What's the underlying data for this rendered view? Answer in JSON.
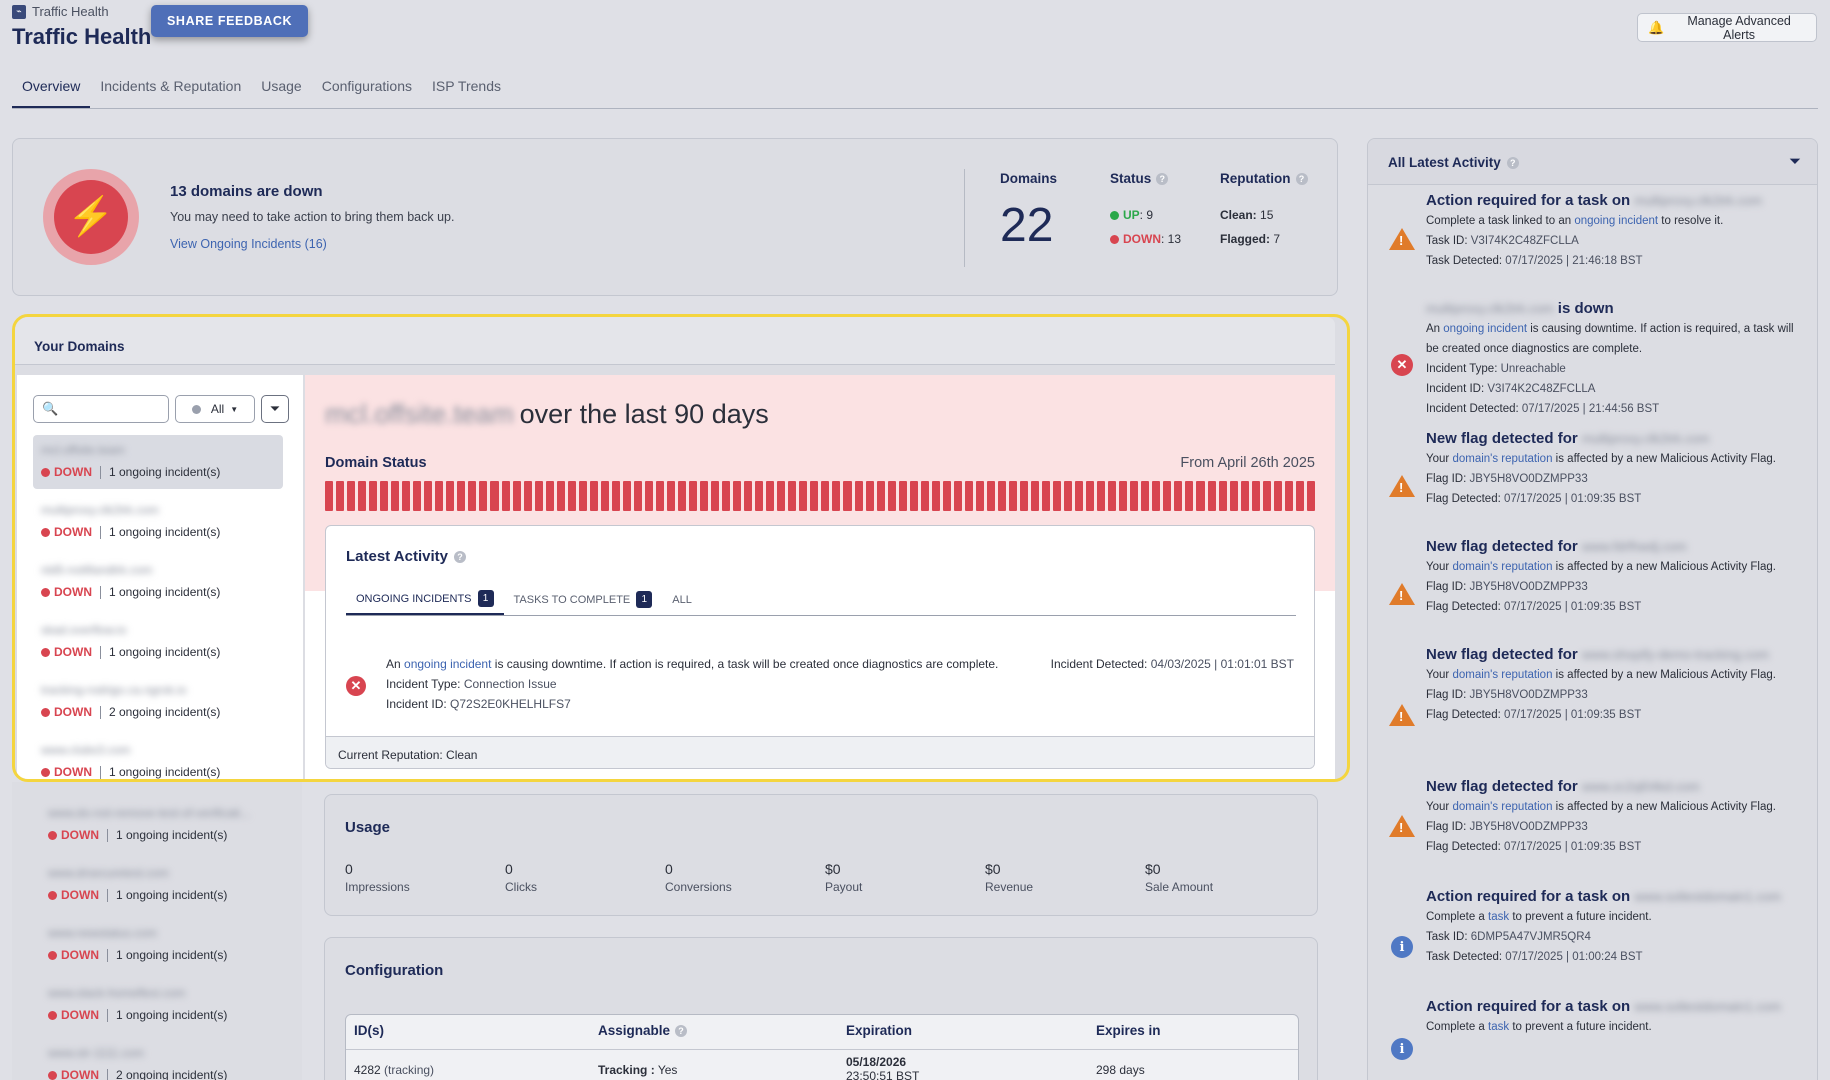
{
  "header": {
    "breadcrumb": "Traffic Health",
    "title": "Traffic Health",
    "feedback_label": "SHARE FEEDBACK",
    "alerts_label": "Manage Advanced Alerts"
  },
  "tabs": [
    {
      "label": "Overview",
      "active": true
    },
    {
      "label": "Incidents & Reputation"
    },
    {
      "label": "Usage"
    },
    {
      "label": "Configurations"
    },
    {
      "label": "ISP Trends"
    }
  ],
  "summary": {
    "title": "13 domains are down",
    "subtitle": "You may need to take action to bring them back up.",
    "link": "View Ongoing Incidents (16)",
    "domains_label": "Domains",
    "domains_count": "22",
    "status_label": "Status",
    "up_label": "UP",
    "up_count": ": 9",
    "down_label": "DOWN",
    "down_count": ": 13",
    "reputation_label": "Reputation",
    "clean_label": "Clean:",
    "clean_count": "15",
    "flagged_label": "Flagged:",
    "flagged_count": "7"
  },
  "domains": {
    "title": "Your Domains",
    "filter_value": "All",
    "list": [
      {
        "name": "mcl.offsite.team",
        "status": "DOWN",
        "incidents": "1 ongoing incident(s)"
      },
      {
        "name": "multiproxy.clk2trk.com",
        "status": "DOWN",
        "incidents": "1 ongoing incident(s)"
      },
      {
        "name": "nld5-notifiandtrk.com",
        "status": "DOWN",
        "incidents": "1 ongoing incident(s)"
      },
      {
        "name": "skad.overflow.io",
        "status": "DOWN",
        "incidents": "1 ongoing incident(s)"
      },
      {
        "name": "tracking-rodrigo.ca.ngrok.io",
        "status": "DOWN",
        "incidents": "2 ongoing incident(s)"
      },
      {
        "name": "www.clubs3.com",
        "status": "DOWN",
        "incidents": "1 ongoing incident(s)"
      },
      {
        "name": "www.do-not-remove-test-of-verificati...",
        "status": "DOWN",
        "incidents": "1 ongoing incident(s)"
      },
      {
        "name": "www.drsecuretest.com",
        "status": "DOWN",
        "incidents": "1 ongoing incident(s)"
      },
      {
        "name": "www.newstatus.com",
        "status": "DOWN",
        "incidents": "1 ongoing incident(s)"
      },
      {
        "name": "www.slack-homeflexi.com",
        "status": "DOWN",
        "incidents": "1 ongoing incident(s)"
      },
      {
        "name": "www.str-1111.com",
        "status": "DOWN",
        "incidents": "2 ongoing incident(s)"
      }
    ],
    "detail": {
      "domain": "mcl.offsite.team",
      "title_suffix": "over the last 90 days",
      "status_label": "Domain Status",
      "from_label": "From April 26th 2025",
      "days_down": 90
    },
    "latest_activity": {
      "title": "Latest Activity",
      "tabs": [
        {
          "label": "ONGOING INCIDENTS",
          "count": "1"
        },
        {
          "label": "TASKS TO COMPLETE",
          "count": "1"
        },
        {
          "label": "ALL"
        }
      ],
      "incident": {
        "pre": "An",
        "link": "ongoing incident",
        "post": "is causing downtime. If action is required, a task will be created once diagnostics are complete.",
        "type_label": "Incident Type:",
        "type_value": "Connection Issue",
        "id_label": "Incident ID:",
        "id_value": "Q72S2E0KHELHLFS7",
        "detected_label": "Incident Detected:",
        "detected_date": "04/03/2025",
        "detected_sep": "|",
        "detected_time": "01:01:01 BST"
      },
      "reputation_footer": "Current Reputation: Clean"
    }
  },
  "usage": {
    "title": "Usage",
    "metrics": [
      {
        "value": "0",
        "label": "Impressions"
      },
      {
        "value": "0",
        "label": "Clicks"
      },
      {
        "value": "0",
        "label": "Conversions"
      },
      {
        "value": "$0",
        "label": "Payout"
      },
      {
        "value": "$0",
        "label": "Revenue"
      },
      {
        "value": "$0",
        "label": "Sale Amount"
      }
    ]
  },
  "configuration": {
    "title": "Configuration",
    "headers": [
      "ID(s)",
      "Assignable",
      "Expiration",
      "Expires in"
    ],
    "row": {
      "id": "4282",
      "id_type": "(tracking)",
      "assignable_label": "Tracking :",
      "assignable_value": "Yes",
      "expiration_date": "05/18/2026",
      "expiration_time": "23:50:51 BST",
      "expires_in": "298 days"
    }
  },
  "activity": {
    "title": "All Latest Activity",
    "items": [
      {
        "icon": "warning",
        "head_pre": "Action required for a task on",
        "head_domain": "multiproxy.clk2trk.com",
        "head_post": "",
        "l1_pre": "Complete a task linked to an",
        "l1_link": "ongoing incident",
        "l1_post": "to resolve it.",
        "l2_label": "Task ID:",
        "l2_value": "V3I74K2C48ZFCLLA",
        "l3_label": "Task Detected:",
        "l3_value": "07/17/2025  |  21:46:18 BST"
      },
      {
        "icon": "error",
        "head_pre": "",
        "head_domain": "multiproxy.clk2trk.com",
        "head_post": "is down",
        "l1_pre": "An",
        "l1_link": "ongoing incident",
        "l1_post": "is causing downtime. If action is required, a task will be created once diagnostics are complete.",
        "l2_label": "Incident Type:",
        "l2_value": "Unreachable",
        "l3_label": "Incident ID:",
        "l3_value": "V3I74K2C48ZFCLLA",
        "l4_label": "Incident Detected:",
        "l4_value": "07/17/2025  |  21:44:56 BST"
      },
      {
        "icon": "warning",
        "head_pre": "New flag detected for",
        "head_domain": "multiproxy.clk2trk.com",
        "head_post": "",
        "l1_pre": "Your",
        "l1_link": "domain's reputation",
        "l1_post": "is affected by a new Malicious Activity Flag.",
        "l2_label": "Flag ID:",
        "l2_value": "JBY5H8VO0DZMPP33",
        "l3_label": "Flag Detected:",
        "l3_value": "07/17/2025  |  01:09:35 BST"
      },
      {
        "icon": "warning",
        "head_pre": "New flag detected for",
        "head_domain": "www.fdrfhwdj.com",
        "head_post": "",
        "l1_pre": "Your",
        "l1_link": "domain's reputation",
        "l1_post": "is affected by a new Malicious Activity Flag.",
        "l2_label": "Flag ID:",
        "l2_value": "JBY5H8VO0DZMPP33",
        "l3_label": "Flag Detected:",
        "l3_value": "07/17/2025  |  01:09:35 BST"
      },
      {
        "icon": "warning",
        "head_pre": "New flag detected for",
        "head_domain": "www.shopify-demo-tracking.com",
        "head_post": "",
        "l1_pre": "Your",
        "l1_link": "domain's reputation",
        "l1_post": "is affected by a new Malicious Activity Flag.",
        "l2_label": "Flag ID:",
        "l2_value": "JBY5H8VO0DZMPP33",
        "l3_label": "Flag Detected:",
        "l3_value": "07/17/2025  |  01:09:35 BST"
      },
      {
        "icon": "warning",
        "head_pre": "New flag detected for",
        "head_domain": "www.zc2ql04kd.com",
        "head_post": "",
        "l1_pre": "Your",
        "l1_link": "domain's reputation",
        "l1_post": "is affected by a new Malicious Activity Flag.",
        "l2_label": "Flag ID:",
        "l2_value": "JBY5H8VO0DZMPP33",
        "l3_label": "Flag Detected:",
        "l3_value": "07/17/2025  |  01:09:35 BST"
      },
      {
        "icon": "info",
        "head_pre": "Action required for a task on",
        "head_domain": "www.soltestdomain1.com",
        "head_post": "",
        "l1_pre": "Complete a",
        "l1_link": "task",
        "l1_post": "to prevent a future incident.",
        "l2_label": "Task ID:",
        "l2_value": "6DMP5A47VJMR5QR4",
        "l3_label": "Task Detected:",
        "l3_value": "07/17/2025  |  01:00:24 BST"
      },
      {
        "icon": "info",
        "head_pre": "Action required for a task on",
        "head_domain": "www.soltestdomain1.com",
        "head_post": "",
        "l1_pre": "Complete a",
        "l1_link": "task",
        "l1_post": "to prevent a future incident.",
        "l2_label": "",
        "l2_value": "",
        "l3_label": "",
        "l3_value": ""
      }
    ]
  }
}
